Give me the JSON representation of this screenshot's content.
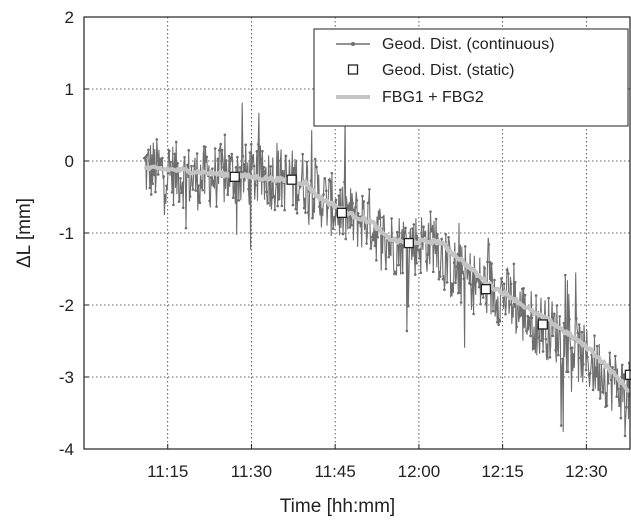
{
  "chart_data": {
    "type": "line",
    "xlabel": "Time [hh:mm]",
    "ylabel": "ΔL [mm]",
    "xlim": [
      11.0,
      12.6333
    ],
    "ylim": [
      -4,
      2
    ],
    "xticks": [
      11.25,
      11.5,
      11.75,
      12.0,
      12.25,
      12.5
    ],
    "xtick_labels": [
      "11:15",
      "11:30",
      "11:45",
      "12:00",
      "12:15",
      "12:30"
    ],
    "yticks": [
      2,
      1,
      0,
      -1,
      -2,
      -3,
      -4
    ],
    "ytick_labels": [
      "2",
      "1",
      "0",
      "-1",
      "-2",
      "-3",
      "-4"
    ],
    "grid": true,
    "legend_position": "top-right",
    "series": [
      {
        "name": "Geod. Dist. (continuous)",
        "style": "line-dots",
        "color": "#6e6e6e",
        "x": [
          11.18,
          11.25,
          11.33,
          11.42,
          11.5,
          11.58,
          11.67,
          11.72,
          11.75,
          11.8,
          11.85,
          11.88,
          11.92,
          12.0,
          12.05,
          12.08,
          12.17,
          12.25,
          12.33,
          12.42,
          12.5,
          12.58,
          12.63
        ],
        "values": [
          -0.1,
          -0.15,
          -0.25,
          -0.2,
          -0.2,
          -0.25,
          -0.3,
          -0.55,
          -0.65,
          -0.8,
          -0.8,
          -1.0,
          -1.15,
          -1.15,
          -1.1,
          -1.45,
          -1.7,
          -1.85,
          -2.2,
          -2.4,
          -2.75,
          -3.05,
          -3.25
        ],
        "noise_amplitude": 0.45
      },
      {
        "name": "Geod. Dist. (static)",
        "style": "square-markers",
        "color": "#222222",
        "x": [
          11.45,
          11.62,
          11.77,
          11.97,
          12.2,
          12.37,
          12.63
        ],
        "values": [
          -0.22,
          -0.26,
          -0.72,
          -1.14,
          -1.78,
          -2.27,
          -2.97
        ]
      },
      {
        "name": "FBG1 + FBG2",
        "style": "line",
        "color": "#c4c4c4",
        "x": [
          11.18,
          11.3,
          11.4,
          11.5,
          11.58,
          11.66,
          11.7,
          11.74,
          11.8,
          11.86,
          11.9,
          11.94,
          12.0,
          12.06,
          12.12,
          12.18,
          12.22,
          12.28,
          12.34,
          12.4,
          12.46,
          12.52,
          12.58,
          12.63
        ],
        "values": [
          -0.1,
          -0.13,
          -0.18,
          -0.22,
          -0.26,
          -0.3,
          -0.5,
          -0.6,
          -0.75,
          -0.85,
          -1.05,
          -1.12,
          -1.12,
          -1.12,
          -1.35,
          -1.6,
          -1.75,
          -1.9,
          -2.1,
          -2.25,
          -2.45,
          -2.65,
          -2.95,
          -3.2
        ]
      }
    ]
  }
}
